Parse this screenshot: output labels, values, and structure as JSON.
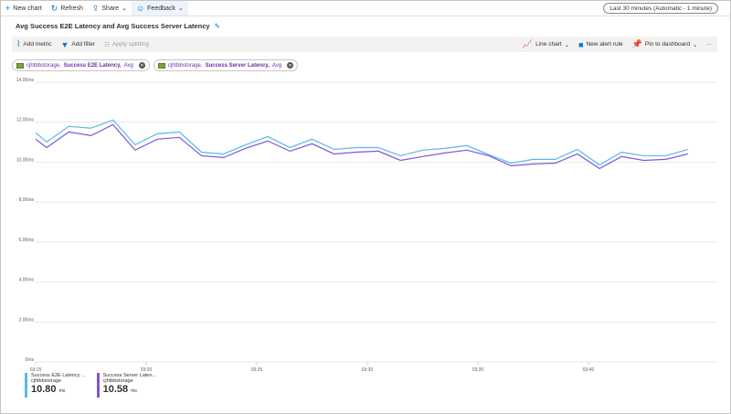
{
  "toolbar": {
    "new_chart": "New chart",
    "refresh": "Refresh",
    "share": "Share",
    "feedback": "Feedback",
    "time_range": "Last 30 minutes (Automatic - 1 minute)"
  },
  "title": "Avg Success E2E Latency and Avg Success Server Latency",
  "metric_bar": {
    "add_metric": "Add metric",
    "add_filter": "Add filter",
    "apply_splitting": "Apply splitting",
    "line_chart": "Line chart",
    "new_alert_rule": "New alert rule",
    "pin_to_dashboard": "Pin to dashboard",
    "more": "···"
  },
  "pills": [
    {
      "resource": "cjhtbbstorage,",
      "metric": "Success E2E Latency,",
      "agg": "Avg"
    },
    {
      "resource": "cjhtbbstorage,",
      "metric": "Success Server Latency,",
      "agg": "Avg"
    }
  ],
  "legend": [
    {
      "name": "Success E2E Latency ...",
      "resource": "cjhtbbstorage",
      "value": "10.80",
      "unit": "ms",
      "color": "#5ab8ea"
    },
    {
      "name": "Success Server Laten...",
      "resource": "cjhtbbstorage",
      "value": "10.58",
      "unit": "ms",
      "color": "#7f55dd"
    }
  ],
  "chart_data": {
    "type": "line",
    "y_ticks": [
      "0ms",
      "2.00ms",
      "4.00ms",
      "6.00ms",
      "8.00ms",
      "10.00ms",
      "12.00ms",
      "14.00ms"
    ],
    "ylim": [
      0,
      14
    ],
    "x_ticks": [
      {
        "label": "03:15",
        "min": 15
      },
      {
        "label": "03:20",
        "min": 20
      },
      {
        "label": "03:25",
        "min": 25
      },
      {
        "label": "03:30",
        "min": 30
      },
      {
        "label": "03:35",
        "min": 35
      },
      {
        "label": "03:40",
        "min": 40
      }
    ],
    "x_minutes": [
      15,
      15.5,
      16.5,
      17.5,
      18.5,
      19.5,
      20.5,
      21.5,
      22.5,
      23.5,
      24.5,
      25.5,
      26.5,
      27.5,
      28.5,
      29.5,
      30.5,
      31.5,
      32.5,
      33.5,
      34.5,
      35.5,
      36.5,
      37.5,
      38.5,
      39.5,
      40.5,
      41.5,
      42.5,
      43.5,
      44.5
    ],
    "series": [
      {
        "name": "Success E2E Latency, Avg",
        "color": "#5ab8ea",
        "values": [
          11.47,
          11.01,
          11.79,
          11.7,
          12.11,
          10.87,
          11.42,
          11.51,
          10.5,
          10.41,
          10.87,
          11.28,
          10.73,
          11.15,
          10.64,
          10.73,
          10.73,
          10.32,
          10.6,
          10.69,
          10.83,
          10.37,
          9.95,
          10.14,
          10.14,
          10.64,
          9.86,
          10.5,
          10.32,
          10.32,
          10.64
        ]
      },
      {
        "name": "Success Server Latency, Avg",
        "color": "#7f55dd",
        "values": [
          11.15,
          10.73,
          11.51,
          11.33,
          11.88,
          10.6,
          11.15,
          11.24,
          10.32,
          10.23,
          10.69,
          11.06,
          10.55,
          10.92,
          10.41,
          10.5,
          10.55,
          10.09,
          10.28,
          10.46,
          10.6,
          10.32,
          9.82,
          9.91,
          9.95,
          10.41,
          9.68,
          10.28,
          10.09,
          10.14,
          10.41
        ]
      }
    ]
  }
}
